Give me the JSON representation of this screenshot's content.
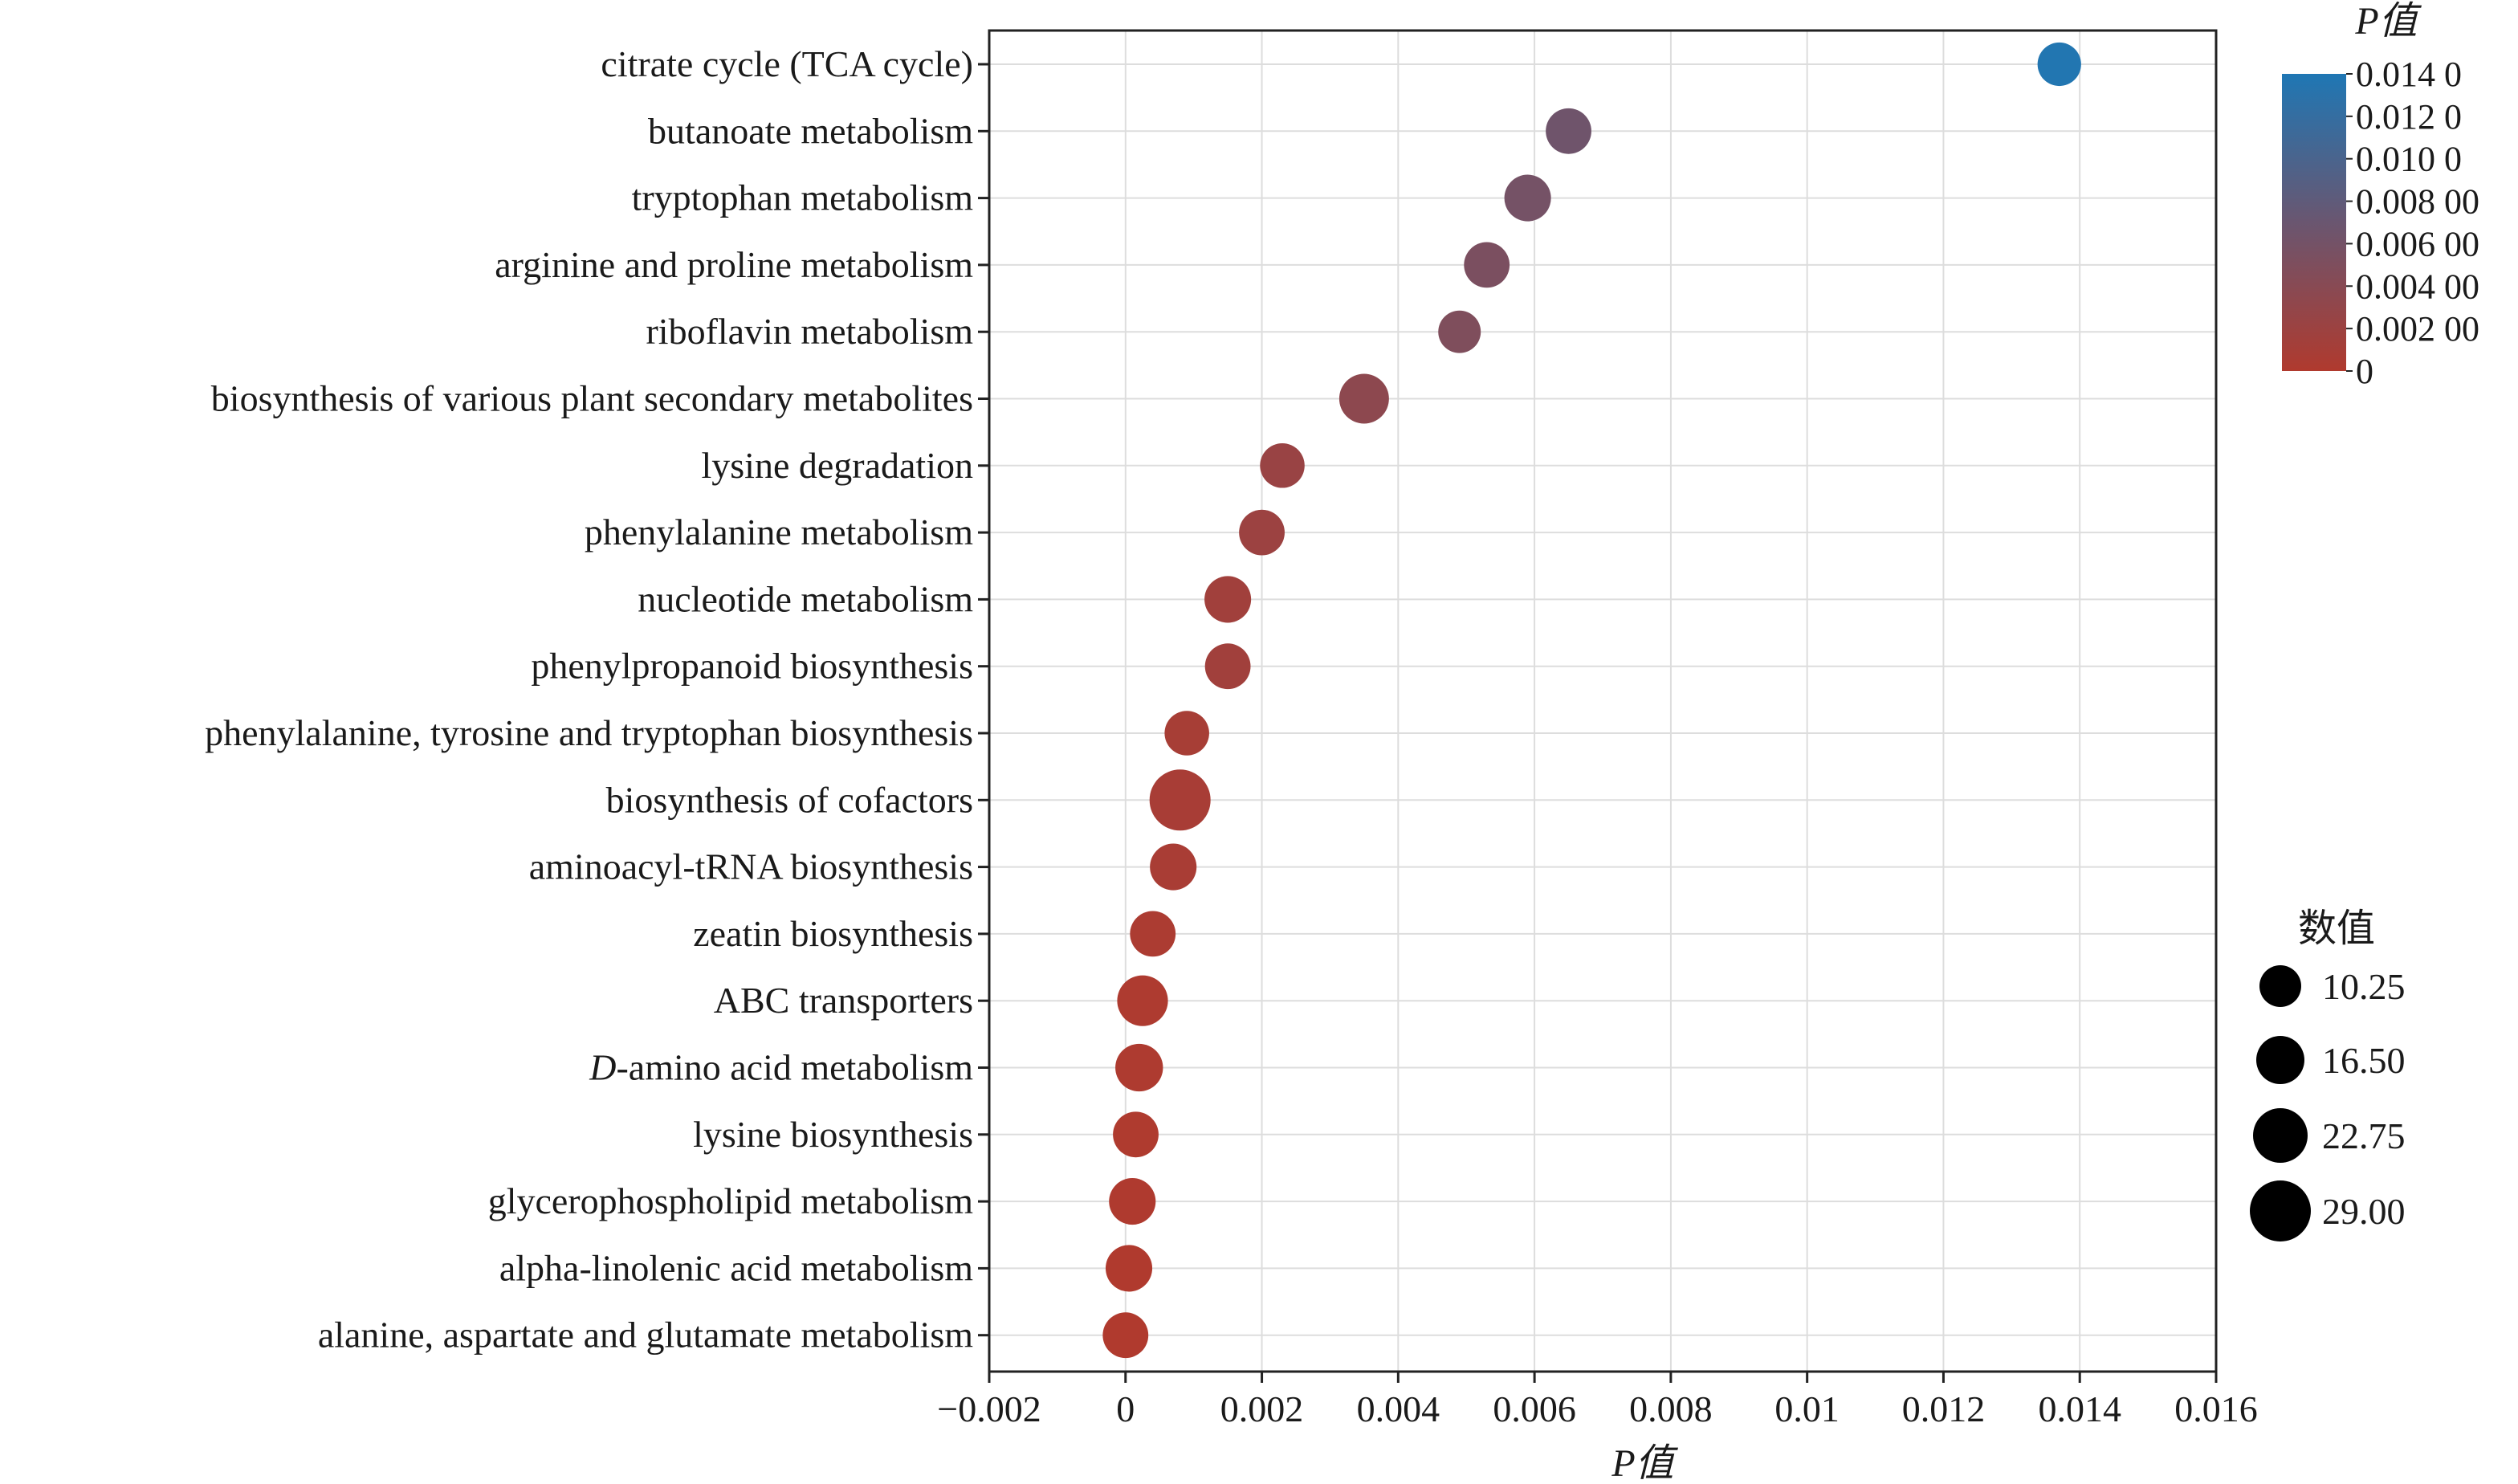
{
  "chart_data": {
    "type": "scatter",
    "xlabel": "P值",
    "xlim": [
      -0.002,
      0.016
    ],
    "x_ticks": [
      "−0.002",
      "0",
      "0.002",
      "0.004",
      "0.006",
      "0.008",
      "0.01",
      "0.012",
      "0.014",
      "0.016"
    ],
    "x_tick_values": [
      -0.002,
      0,
      0.002,
      0.004,
      0.006,
      0.008,
      0.01,
      0.012,
      0.014,
      0.016
    ],
    "grid": true,
    "categories": [
      "citrate cycle (TCA cycle)",
      "butanoate metabolism",
      "tryptophan metabolism",
      "arginine and proline metabolism",
      "riboflavin metabolism",
      "biosynthesis of various plant secondary metabolites",
      "lysine degradation",
      "phenylalanine metabolism",
      "nucleotide metabolism",
      "phenylpropanoid biosynthesis",
      "phenylalanine, tyrosine and tryptophan biosynthesis",
      "biosynthesis of cofactors",
      "aminoacyl-tRNA biosynthesis",
      "zeatin biosynthesis",
      "ABC transporters",
      "D-amino acid metabolism",
      "lysine biosynthesis",
      "glycerophospholipid metabolism",
      "alpha-linolenic acid metabolism",
      "alanine, aspartate and glutamate metabolism"
    ],
    "points": [
      {
        "category": "citrate cycle (TCA cycle)",
        "p": 0.0137,
        "count": 12
      },
      {
        "category": "butanoate metabolism",
        "p": 0.0065,
        "count": 14
      },
      {
        "category": "tryptophan metabolism",
        "p": 0.0059,
        "count": 15
      },
      {
        "category": "arginine and proline metabolism",
        "p": 0.0053,
        "count": 14
      },
      {
        "category": "riboflavin metabolism",
        "p": 0.0049,
        "count": 11
      },
      {
        "category": "biosynthesis of various plant secondary metabolites",
        "p": 0.0035,
        "count": 18
      },
      {
        "category": "lysine degradation",
        "p": 0.0023,
        "count": 13
      },
      {
        "category": "phenylalanine metabolism",
        "p": 0.002,
        "count": 14
      },
      {
        "category": "nucleotide metabolism",
        "p": 0.0015,
        "count": 15
      },
      {
        "category": "phenylpropanoid biosynthesis",
        "p": 0.0015,
        "count": 14
      },
      {
        "category": "phenylalanine, tyrosine and tryptophan biosynthesis",
        "p": 0.0009,
        "count": 13
      },
      {
        "category": "biosynthesis of cofactors",
        "p": 0.0008,
        "count": 29
      },
      {
        "category": "aminoacyl-tRNA biosynthesis",
        "p": 0.0007,
        "count": 15
      },
      {
        "category": "zeatin biosynthesis",
        "p": 0.0004,
        "count": 14
      },
      {
        "category": "ABC transporters",
        "p": 0.00025,
        "count": 19
      },
      {
        "category": "D-amino acid metabolism",
        "p": 0.0002,
        "count": 16
      },
      {
        "category": "lysine biosynthesis",
        "p": 0.00015,
        "count": 14
      },
      {
        "category": "glycerophospholipid metabolism",
        "p": 0.0001,
        "count": 15
      },
      {
        "category": "alpha-linolenic acid metabolism",
        "p": 5e-05,
        "count": 15
      },
      {
        "category": "alanine, aspartate and glutamate metabolism",
        "p": 0.0,
        "count": 14
      }
    ],
    "color_legend": {
      "title": "P值",
      "tick_labels": [
        "0.014 0",
        "0.012 0",
        "0.010 0",
        "0.008 00",
        "0.006 00",
        "0.004 00",
        "0.002 00",
        "0"
      ],
      "tick_values": [
        0.014,
        0.012,
        0.01,
        0.008,
        0.006,
        0.004,
        0.002,
        0
      ],
      "range": [
        0,
        0.014
      ],
      "low_color": "#b03a2e",
      "high_color": "#1f77b4",
      "placement": "right-top"
    },
    "size_legend": {
      "title": "数值",
      "labels": [
        "10.25",
        "16.50",
        "22.75",
        "29.00"
      ],
      "values": [
        10.25,
        16.5,
        22.75,
        29.0
      ],
      "placement": "right-bottom"
    }
  }
}
